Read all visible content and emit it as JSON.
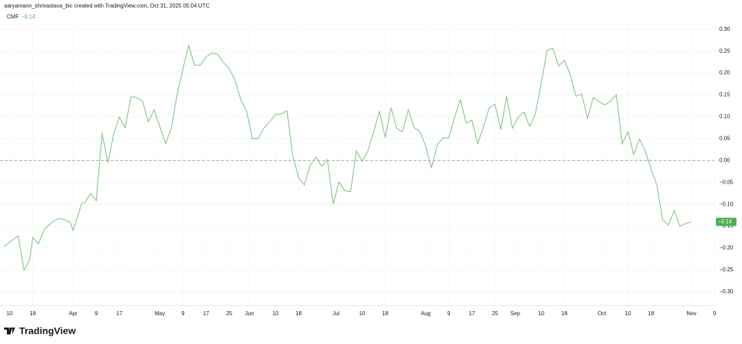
{
  "header": {
    "attribution": "aaryamann_shrivastava_bic created with TradingView.com, Oct 31, 2025 05:04 UTC"
  },
  "footer": {
    "brand": "TradingView"
  },
  "chart_data": {
    "type": "line",
    "last_value": {
      "value": -0.14,
      "label": "−0.14"
    },
    "baseline": 0,
    "x": [
      7,
      12,
      14,
      16,
      17,
      19,
      21,
      24,
      26,
      28,
      30,
      31,
      34,
      35,
      37,
      39,
      41,
      43,
      45,
      47,
      49,
      51,
      53,
      55,
      57,
      59,
      61,
      63,
      65,
      67,
      69,
      71,
      73,
      75,
      77,
      79,
      81,
      83,
      85,
      87,
      89,
      91,
      93,
      95,
      97,
      99,
      101,
      103,
      105,
      107,
      109,
      111,
      113,
      115,
      117,
      119,
      121,
      123,
      125,
      127,
      129,
      131,
      133,
      135,
      137,
      139,
      141,
      143,
      145,
      147,
      149,
      151,
      153,
      155,
      157,
      159,
      161,
      163,
      165,
      167,
      169,
      171,
      173,
      175,
      177,
      179,
      181,
      183,
      185,
      187,
      189,
      191,
      193,
      195,
      197,
      199,
      201,
      203,
      205,
      207,
      209,
      211,
      213,
      215,
      217,
      219,
      221,
      223,
      225,
      227,
      229,
      231,
      233,
      235,
      237,
      239,
      241,
      243,
      245
    ],
    "series": [
      {
        "name": "CMF",
        "color": "#81c784",
        "values": [
          -0.197,
          -0.172,
          -0.251,
          -0.226,
          -0.176,
          -0.19,
          -0.157,
          -0.139,
          -0.132,
          -0.135,
          -0.141,
          -0.16,
          -0.097,
          -0.096,
          -0.075,
          -0.092,
          0.063,
          -0.005,
          0.06,
          0.099,
          0.075,
          0.146,
          0.144,
          0.136,
          0.089,
          0.116,
          0.077,
          0.039,
          0.074,
          0.152,
          0.21,
          0.263,
          0.218,
          0.218,
          0.237,
          0.246,
          0.243,
          0.224,
          0.21,
          0.185,
          0.139,
          0.113,
          0.05,
          0.05,
          0.074,
          0.089,
          0.105,
          0.107,
          0.114,
          0.011,
          -0.039,
          -0.056,
          -0.011,
          0.008,
          -0.013,
          0.002,
          -0.099,
          -0.049,
          -0.069,
          -0.071,
          0.022,
          -0.002,
          0.022,
          0.066,
          0.113,
          0.053,
          0.121,
          0.074,
          0.066,
          0.116,
          0.075,
          0.066,
          0.033,
          -0.017,
          0.036,
          0.052,
          0.052,
          0.099,
          0.139,
          0.086,
          0.092,
          0.039,
          0.077,
          0.121,
          0.129,
          0.071,
          0.147,
          0.074,
          0.099,
          0.111,
          0.078,
          0.108,
          0.177,
          0.251,
          0.257,
          0.216,
          0.229,
          0.197,
          0.147,
          0.152,
          0.096,
          0.144,
          0.135,
          0.127,
          0.136,
          0.15,
          0.038,
          0.066,
          0.014,
          0.049,
          0.022,
          -0.019,
          -0.056,
          -0.135,
          -0.147,
          -0.114,
          -0.15,
          -0.144,
          -0.14
        ]
      }
    ],
    "xlim": [
      5.67,
      253.2
    ],
    "xticks": [
      {
        "value": 9,
        "label": "10"
      },
      {
        "value": 17,
        "label": "18"
      },
      {
        "value": 31,
        "label": "Apr"
      },
      {
        "value": 39,
        "label": "9"
      },
      {
        "value": 47,
        "label": "17"
      },
      {
        "value": 61,
        "label": "May"
      },
      {
        "value": 69,
        "label": "9"
      },
      {
        "value": 77,
        "label": "17"
      },
      {
        "value": 85,
        "label": "25"
      },
      {
        "value": 92,
        "label": "Jun"
      },
      {
        "value": 101,
        "label": "10"
      },
      {
        "value": 109,
        "label": "18"
      },
      {
        "value": 122,
        "label": "Jul"
      },
      {
        "value": 131,
        "label": "10"
      },
      {
        "value": 139,
        "label": "18"
      },
      {
        "value": 153,
        "label": "Aug"
      },
      {
        "value": 161,
        "label": "9"
      },
      {
        "value": 169,
        "label": "17"
      },
      {
        "value": 177,
        "label": "25"
      },
      {
        "value": 184,
        "label": "Sep"
      },
      {
        "value": 193,
        "label": "10"
      },
      {
        "value": 201,
        "label": "18"
      },
      {
        "value": 214,
        "label": "Oct"
      },
      {
        "value": 223,
        "label": "10"
      },
      {
        "value": 231,
        "label": "18"
      },
      {
        "value": 245,
        "label": "Nov"
      },
      {
        "value": 253,
        "label": "9"
      }
    ],
    "ylim": [
      -0.33,
      0.32
    ],
    "yticks": [
      {
        "value": 0.3,
        "label": "0.30"
      },
      {
        "value": 0.25,
        "label": "0.25"
      },
      {
        "value": 0.2,
        "label": "0.20"
      },
      {
        "value": 0.15,
        "label": "0.15"
      },
      {
        "value": 0.1,
        "label": "0.10"
      },
      {
        "value": 0.05,
        "label": "0.05"
      },
      {
        "value": 0,
        "label": "0.00"
      },
      {
        "value": -0.05,
        "label": "−0.05"
      },
      {
        "value": -0.1,
        "label": "−0.10"
      },
      {
        "value": -0.15,
        "label": "−0.15"
      },
      {
        "value": -0.2,
        "label": "−0.20"
      },
      {
        "value": -0.25,
        "label": "−0.25"
      },
      {
        "value": -0.3,
        "label": "−0.30"
      }
    ]
  }
}
